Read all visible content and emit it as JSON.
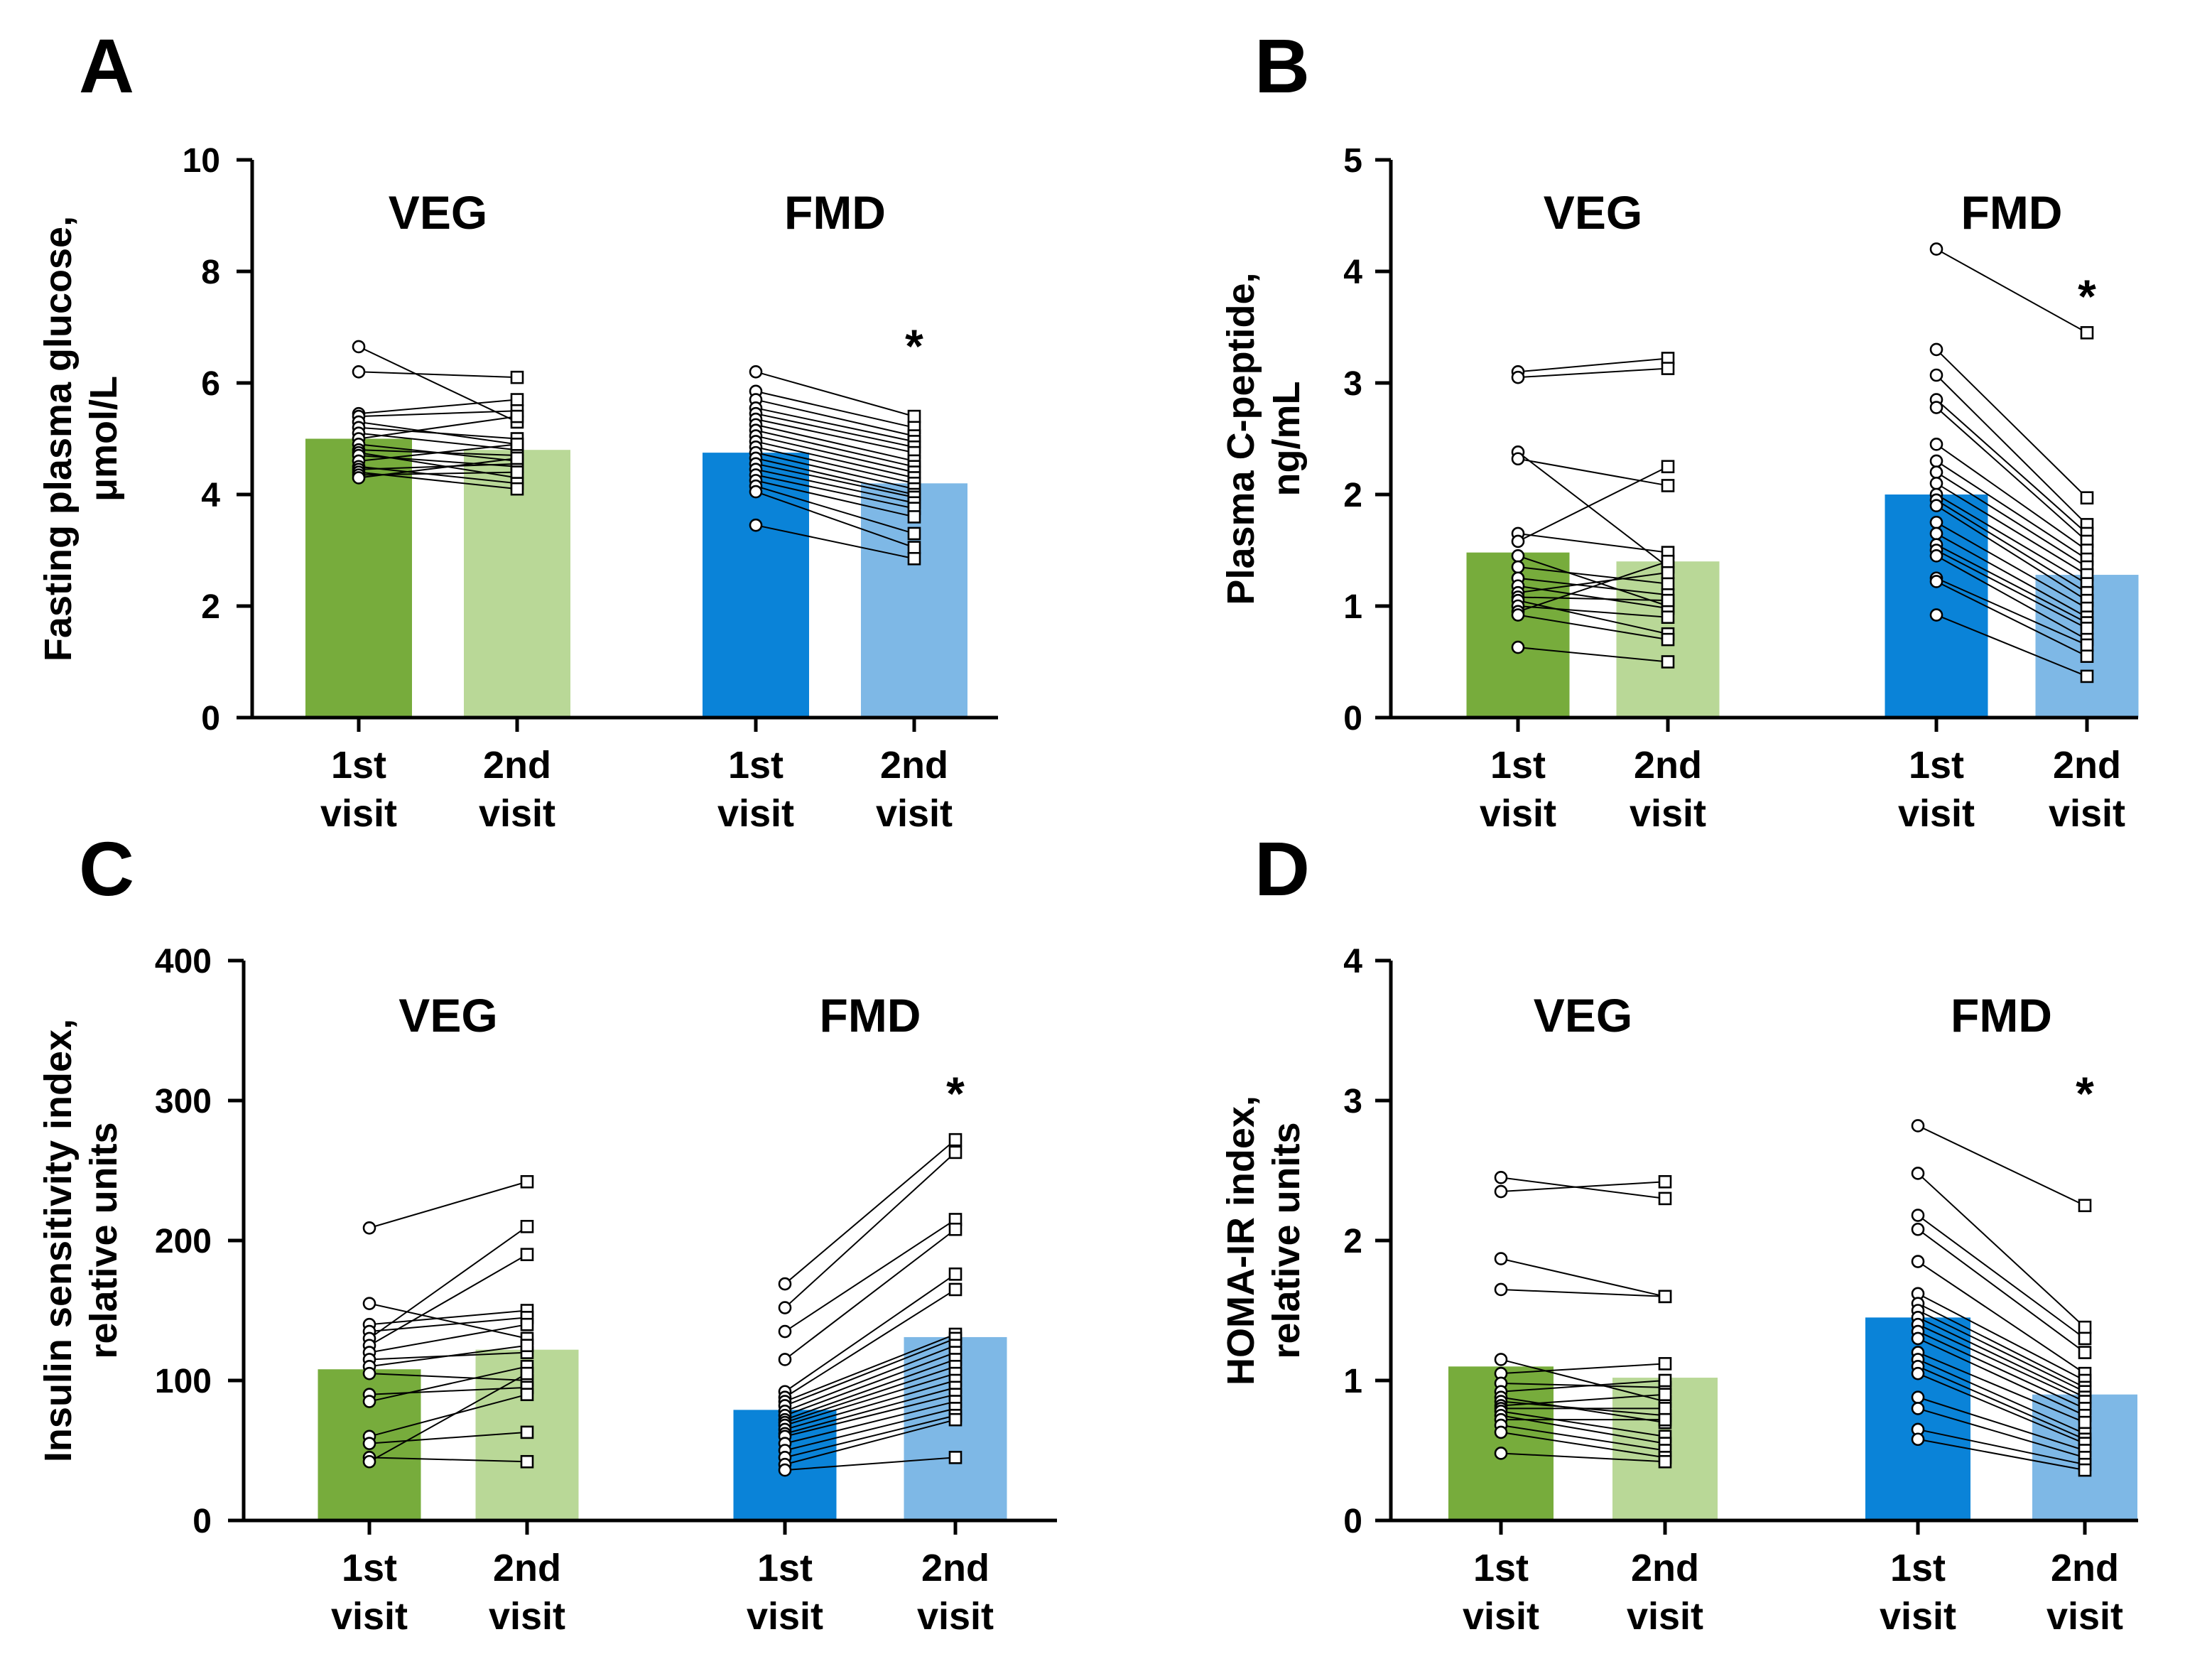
{
  "chart_data": [
    {
      "panel": "A",
      "type": "bar",
      "ylabel": [
        "Fasting plasma glucose,",
        "μmol/L"
      ],
      "ylim": [
        0,
        10
      ],
      "yticks": [
        0,
        2,
        4,
        6,
        8,
        10
      ],
      "groups": [
        "VEG",
        "FMD"
      ],
      "categories": [
        [
          "1st",
          "visit"
        ],
        [
          "2nd",
          "visit"
        ],
        [
          "1st",
          "visit"
        ],
        [
          "2nd",
          "visit"
        ]
      ],
      "bar_colors": [
        "#77ac3c",
        "#b9d897",
        "#0a83d8",
        "#7eb8e6"
      ],
      "values": [
        5.0,
        4.8,
        4.75,
        4.2
      ],
      "significance": "*",
      "series": [
        {
          "name": "VEG",
          "first": [
            6.65,
            6.2,
            5.45,
            5.4,
            5.3,
            5.2,
            5.1,
            5.0,
            4.9,
            4.8,
            4.75,
            4.7,
            4.6,
            4.5,
            4.45,
            4.4,
            4.35,
            4.3
          ],
          "second": [
            5.3,
            6.1,
            5.7,
            5.5,
            4.9,
            5.0,
            4.8,
            5.4,
            4.6,
            4.7,
            4.3,
            4.5,
            4.9,
            4.2,
            4.55,
            4.1,
            4.4,
            4.65
          ]
        },
        {
          "name": "FMD",
          "first": [
            6.2,
            5.85,
            5.7,
            5.55,
            5.45,
            5.35,
            5.25,
            5.15,
            5.05,
            4.95,
            4.85,
            4.75,
            4.65,
            4.55,
            4.45,
            4.35,
            4.25,
            4.15,
            4.05,
            3.45
          ],
          "second": [
            5.4,
            5.2,
            5.05,
            4.95,
            4.85,
            4.75,
            4.6,
            4.5,
            4.4,
            4.3,
            4.2,
            4.1,
            4.0,
            3.95,
            3.85,
            3.75,
            3.6,
            3.3,
            3.05,
            2.85
          ]
        }
      ]
    },
    {
      "panel": "B",
      "type": "bar",
      "ylabel": [
        "Plasma C-peptide,",
        "ng/mL"
      ],
      "ylim": [
        0,
        5
      ],
      "yticks": [
        0,
        1,
        2,
        3,
        4,
        5
      ],
      "groups": [
        "VEG",
        "FMD"
      ],
      "categories": [
        [
          "1st",
          "visit"
        ],
        [
          "2nd",
          "visit"
        ],
        [
          "1st",
          "visit"
        ],
        [
          "2nd",
          "visit"
        ]
      ],
      "bar_colors": [
        "#77ac3c",
        "#b9d897",
        "#0a83d8",
        "#7eb8e6"
      ],
      "values": [
        1.48,
        1.4,
        2.0,
        1.28
      ],
      "significance": "*",
      "series": [
        {
          "name": "VEG",
          "first": [
            3.1,
            3.05,
            2.38,
            2.32,
            1.65,
            1.58,
            1.45,
            1.35,
            1.25,
            1.18,
            1.12,
            1.08,
            1.05,
            1.0,
            0.95,
            0.92,
            0.63
          ],
          "second": [
            3.22,
            3.13,
            1.35,
            2.08,
            1.48,
            2.25,
            1.0,
            1.2,
            1.1,
            0.98,
            1.3,
            1.05,
            0.75,
            0.9,
            1.4,
            0.7,
            0.5
          ]
        },
        {
          "name": "FMD",
          "first": [
            4.2,
            3.3,
            3.07,
            2.85,
            2.78,
            2.45,
            2.3,
            2.2,
            2.1,
            2.0,
            1.95,
            1.9,
            1.75,
            1.65,
            1.55,
            1.5,
            1.45,
            1.25,
            1.22,
            0.92
          ],
          "second": [
            3.45,
            1.97,
            1.73,
            1.65,
            1.58,
            1.5,
            1.42,
            1.35,
            1.28,
            1.2,
            1.12,
            1.05,
            0.98,
            0.9,
            0.85,
            0.8,
            0.7,
            0.65,
            0.55,
            0.37
          ]
        }
      ]
    },
    {
      "panel": "C",
      "type": "bar",
      "ylabel": [
        "Insulin sensitivity index,",
        "relative units"
      ],
      "ylim": [
        0,
        400
      ],
      "yticks": [
        0,
        100,
        200,
        300,
        400
      ],
      "groups": [
        "VEG",
        "FMD"
      ],
      "categories": [
        [
          "1st",
          "visit"
        ],
        [
          "2nd",
          "visit"
        ],
        [
          "1st",
          "visit"
        ],
        [
          "2nd",
          "visit"
        ]
      ],
      "bar_colors": [
        "#77ac3c",
        "#b9d897",
        "#0a83d8",
        "#7eb8e6"
      ],
      "values": [
        108,
        122,
        79,
        131
      ],
      "significance": "*",
      "series": [
        {
          "name": "VEG",
          "first": [
            209,
            155,
            140,
            135,
            130,
            125,
            120,
            115,
            110,
            105,
            90,
            85,
            60,
            55,
            45,
            42
          ],
          "second": [
            242,
            130,
            150,
            145,
            210,
            190,
            140,
            120,
            125,
            100,
            95,
            110,
            90,
            63,
            42,
            105
          ]
        },
        {
          "name": "FMD",
          "first": [
            169,
            152,
            135,
            115,
            92,
            88,
            85,
            82,
            78,
            75,
            72,
            70,
            68,
            65,
            62,
            60,
            55,
            50,
            45,
            40,
            36
          ],
          "second": [
            272,
            263,
            215,
            208,
            176,
            165,
            133,
            130,
            125,
            120,
            115,
            110,
            105,
            100,
            95,
            90,
            85,
            80,
            75,
            72,
            45
          ]
        }
      ]
    },
    {
      "panel": "D",
      "type": "bar",
      "ylabel": [
        "HOMA-IR index,",
        "relative units"
      ],
      "ylim": [
        0,
        4
      ],
      "yticks": [
        0,
        1,
        2,
        3,
        4
      ],
      "groups": [
        "VEG",
        "FMD"
      ],
      "categories": [
        [
          "1st",
          "visit"
        ],
        [
          "2nd",
          "visit"
        ],
        [
          "1st",
          "visit"
        ],
        [
          "2nd",
          "visit"
        ]
      ],
      "bar_colors": [
        "#77ac3c",
        "#b9d897",
        "#0a83d8",
        "#7eb8e6"
      ],
      "values": [
        1.1,
        1.02,
        1.45,
        0.9
      ],
      "significance": "*",
      "series": [
        {
          "name": "VEG",
          "first": [
            2.45,
            2.35,
            1.87,
            1.65,
            1.15,
            1.05,
            0.98,
            0.92,
            0.88,
            0.85,
            0.82,
            0.8,
            0.78,
            0.75,
            0.72,
            0.68,
            0.63,
            0.48
          ],
          "second": [
            2.3,
            2.42,
            1.6,
            1.6,
            0.85,
            1.12,
            0.95,
            1.0,
            0.7,
            0.75,
            0.9,
            0.8,
            0.6,
            0.55,
            0.72,
            0.5,
            0.45,
            0.42
          ]
        },
        {
          "name": "FMD",
          "first": [
            2.82,
            2.48,
            2.18,
            2.08,
            1.85,
            1.62,
            1.55,
            1.5,
            1.45,
            1.4,
            1.35,
            1.3,
            1.2,
            1.15,
            1.1,
            1.05,
            0.88,
            0.8,
            0.65,
            0.58
          ],
          "second": [
            2.25,
            1.38,
            1.3,
            1.2,
            1.05,
            1.0,
            0.95,
            0.92,
            0.88,
            0.85,
            0.8,
            0.75,
            0.7,
            0.62,
            0.58,
            0.55,
            0.5,
            0.45,
            0.4,
            0.36
          ]
        }
      ]
    }
  ]
}
